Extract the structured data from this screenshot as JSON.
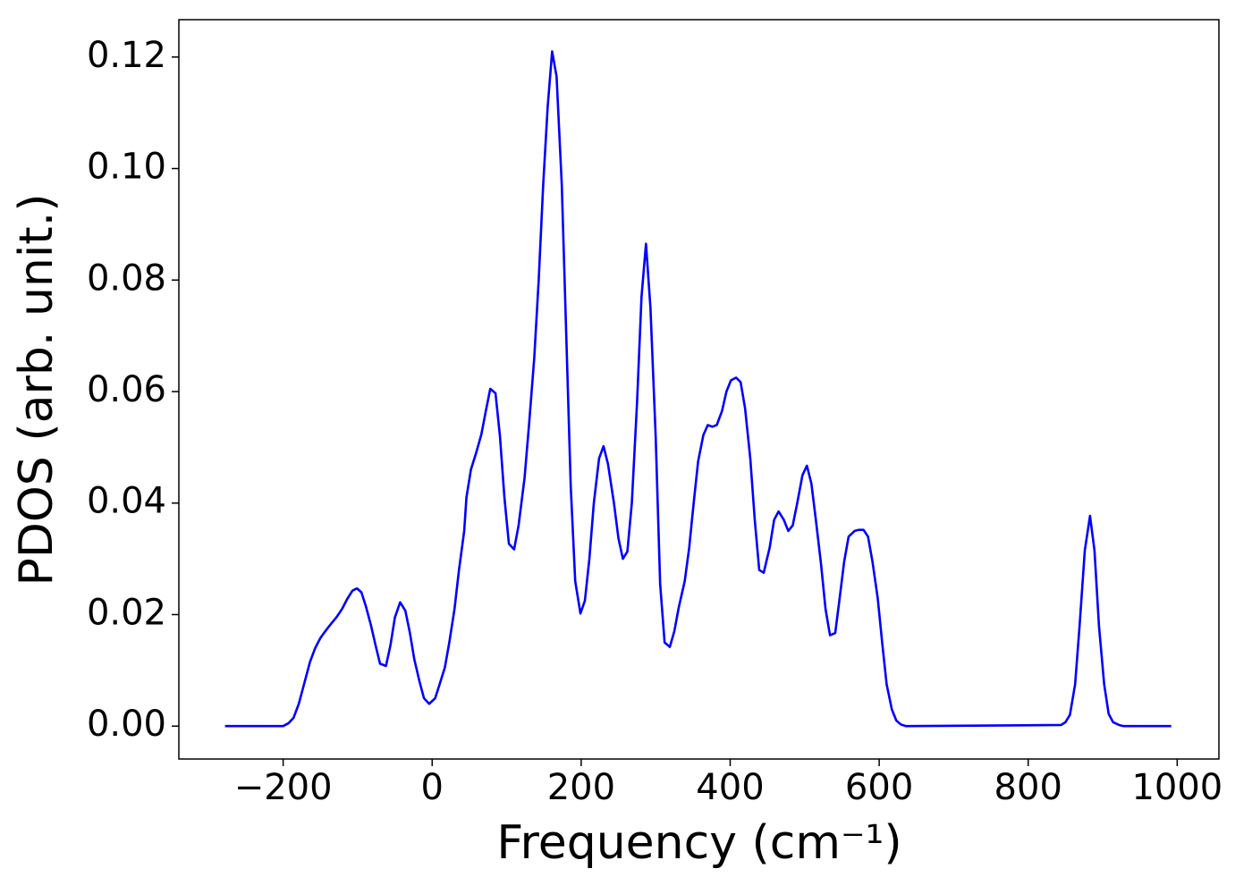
{
  "chart_data": {
    "type": "line",
    "xlabel": "Frequency (cm⁻¹)",
    "ylabel": "PDOS (arb. unit.)",
    "xlim": [
      -340,
      1056
    ],
    "ylim": [
      -0.0059,
      0.1267
    ],
    "xticks": [
      {
        "value": -200,
        "label": "−200"
      },
      0,
      200,
      400,
      600,
      800,
      1000
    ],
    "yticks": [
      {
        "value": 0,
        "label": "0.00"
      },
      {
        "value": 0.02,
        "label": "0.02"
      },
      {
        "value": 0.04,
        "label": "0.04"
      },
      {
        "value": 0.06,
        "label": "0.06"
      },
      {
        "value": 0.08,
        "label": "0.08"
      },
      {
        "value": 0.1,
        "label": "0.10"
      },
      {
        "value": 0.12,
        "label": "0.12"
      }
    ],
    "grid": false,
    "series": [
      {
        "color": "#0000ff",
        "x": [
          -278,
          -200,
          -193,
          -186,
          -179,
          -172,
          -164,
          -157,
          -150,
          -143,
          -136,
          -128,
          -121,
          -114,
          -107,
          -101,
          -95,
          -89,
          -82,
          -76,
          -70,
          -62,
          -56,
          -50,
          -43,
          -36,
          -30,
          -24,
          -17,
          -11,
          -4,
          4,
          10,
          17,
          23,
          30,
          36,
          43,
          46,
          52,
          59,
          66,
          72,
          78,
          85,
          91,
          97,
          103,
          110,
          116,
          124,
          130,
          137,
          143,
          149,
          155,
          161,
          167,
          174,
          180,
          186,
          192,
          199,
          205,
          211,
          217,
          224,
          230,
          236,
          244,
          250,
          256,
          262,
          268,
          275,
          281,
          287,
          293,
          300,
          306,
          312,
          319,
          325,
          331,
          339,
          345,
          351,
          357,
          364,
          370,
          376,
          382,
          389,
          395,
          401,
          408,
          414,
          420,
          427,
          433,
          439,
          445,
          453,
          459,
          465,
          472,
          478,
          484,
          490,
          497,
          503,
          509,
          515,
          522,
          528,
          534,
          541,
          547,
          553,
          559,
          567,
          573,
          579,
          585,
          591,
          598,
          604,
          610,
          617,
          623,
          629,
          636,
          844,
          850,
          856,
          863,
          869,
          876,
          883,
          889,
          895,
          902,
          908,
          914,
          922,
          928,
          992
        ],
        "values": [
          0,
          0,
          0.0005,
          0.0015,
          0.004,
          0.0075,
          0.0115,
          0.014,
          0.0158,
          0.0171,
          0.0183,
          0.0196,
          0.021,
          0.0228,
          0.0243,
          0.0247,
          0.024,
          0.0215,
          0.018,
          0.0145,
          0.0112,
          0.0108,
          0.0145,
          0.0195,
          0.0222,
          0.0207,
          0.0168,
          0.012,
          0.008,
          0.005,
          0.004,
          0.005,
          0.0075,
          0.0105,
          0.015,
          0.021,
          0.028,
          0.035,
          0.041,
          0.046,
          0.049,
          0.0523,
          0.0565,
          0.0605,
          0.0597,
          0.052,
          0.041,
          0.0327,
          0.0317,
          0.036,
          0.0445,
          0.054,
          0.066,
          0.08,
          0.097,
          0.111,
          0.121,
          0.1165,
          0.097,
          0.07,
          0.043,
          0.026,
          0.0202,
          0.0225,
          0.03,
          0.04,
          0.048,
          0.0502,
          0.047,
          0.04,
          0.0337,
          0.03,
          0.0313,
          0.04,
          0.058,
          0.077,
          0.0865,
          0.075,
          0.052,
          0.0255,
          0.015,
          0.0142,
          0.017,
          0.0213,
          0.026,
          0.032,
          0.04,
          0.0475,
          0.0522,
          0.054,
          0.0537,
          0.054,
          0.0565,
          0.06,
          0.062,
          0.0625,
          0.0617,
          0.057,
          0.048,
          0.037,
          0.028,
          0.0275,
          0.032,
          0.037,
          0.0385,
          0.037,
          0.035,
          0.036,
          0.04,
          0.045,
          0.0467,
          0.0435,
          0.037,
          0.029,
          0.021,
          0.0163,
          0.0167,
          0.023,
          0.0295,
          0.034,
          0.035,
          0.0352,
          0.0352,
          0.034,
          0.0295,
          0.023,
          0.015,
          0.0075,
          0.003,
          0.001,
          0.0003,
          0,
          0.0002,
          0.0007,
          0.002,
          0.0075,
          0.018,
          0.0315,
          0.0377,
          0.0315,
          0.018,
          0.0075,
          0.0022,
          0.0007,
          0.0002,
          0,
          0
        ]
      }
    ]
  }
}
